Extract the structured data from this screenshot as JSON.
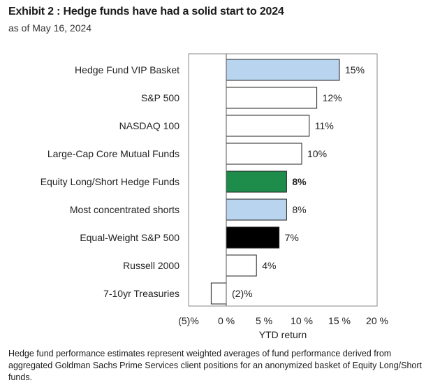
{
  "header": {
    "title": "Exhibit 2 : Hedge funds have had a solid start to 2024",
    "subtitle": "as of May 16, 2024"
  },
  "chart_data": {
    "type": "bar",
    "orientation": "horizontal",
    "categories": [
      "Hedge Fund VIP Basket",
      "S&P 500",
      "NASDAQ 100",
      "Large-Cap Core Mutual Funds",
      "Equity Long/Short Hedge Funds",
      "Most concentrated shorts",
      "Equal-Weight S&P 500",
      "Russell 2000",
      "7-10yr Treasuries"
    ],
    "values": [
      15,
      12,
      11,
      10,
      8,
      8,
      7,
      4,
      -2
    ],
    "value_labels": [
      "15%",
      "12%",
      "11%",
      "10%",
      "8%",
      "8%",
      "7%",
      "4%",
      "(2)%"
    ],
    "bold_labels": [
      false,
      false,
      false,
      false,
      true,
      false,
      false,
      false,
      false
    ],
    "bar_colors": [
      "#b8d4ee",
      "#ffffff",
      "#ffffff",
      "#ffffff",
      "#1e8c4a",
      "#b8d4ee",
      "#000000",
      "#ffffff",
      "#ffffff"
    ],
    "xlabel": "YTD return",
    "xlim": [
      -5,
      20
    ],
    "x_ticks": [
      -5,
      0,
      5,
      10,
      15,
      20
    ],
    "x_tick_labels": [
      "(5)%",
      "0 %",
      "5 %",
      "10 %",
      "15 %",
      "20 %"
    ],
    "grid": false
  },
  "footnote": "Hedge fund performance estimates represent weighted averages of fund performance derived from aggregated Goldman Sachs Prime Services client positions for an anonymized basket of Equity Long/Short funds."
}
